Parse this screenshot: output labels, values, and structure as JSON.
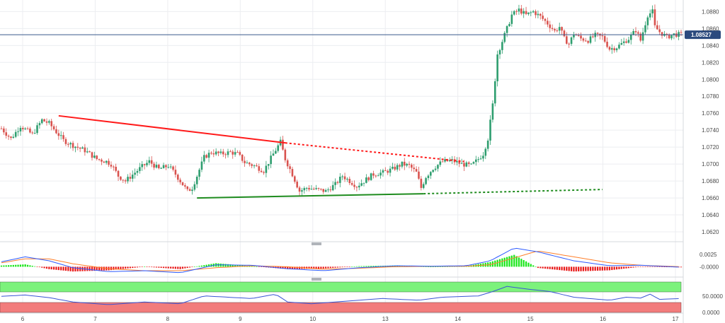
{
  "chart_data": [
    {
      "type": "candlestick",
      "title": "",
      "x_ticks": [
        "6",
        "7",
        "8",
        "9",
        "10",
        "13",
        "14",
        "15",
        "16",
        "17"
      ],
      "y_ticks": [
        "1.0880",
        "1.0860",
        "1.0840",
        "1.0820",
        "1.0800",
        "1.0780",
        "1.0760",
        "1.0740",
        "1.0720",
        "1.0700",
        "1.0680",
        "1.0660",
        "1.0640",
        "1.0620"
      ],
      "ylim": [
        1.061,
        1.0892
      ],
      "last_price": 1.08527,
      "last_price_label": "1.08527",
      "grid": true,
      "colors": {
        "up": "#2e9e6f",
        "down": "#d9534f",
        "resistance": "#ff1a1a",
        "support": "#1f8c1f",
        "last_line": "#3a5a8c"
      },
      "trendlines": [
        {
          "name": "resistance",
          "from": [
            "6 (late)",
            1.0757
          ],
          "to": [
            "9 (late)",
            1.0725
          ],
          "extension_to": [
            "14",
            1.0703
          ],
          "style": "solid-then-dotted"
        },
        {
          "name": "support",
          "from": [
            "8 (late)",
            1.066
          ],
          "to": [
            "13 (late)",
            1.0665
          ],
          "extension_to": [
            "15 (late)",
            1.067
          ],
          "style": "solid-then-dotted"
        }
      ],
      "close_path": [
        [
          0,
          1.0742
        ],
        [
          4,
          1.073
        ],
        [
          8,
          1.0745
        ],
        [
          13,
          1.0735
        ],
        [
          17,
          1.0752
        ],
        [
          20,
          1.0748
        ],
        [
          23,
          1.0738
        ],
        [
          26,
          1.0728
        ],
        [
          30,
          1.0722
        ],
        [
          35,
          1.0716
        ],
        [
          40,
          1.0706
        ],
        [
          44,
          1.0703
        ],
        [
          46,
          1.07
        ],
        [
          49,
          1.0686
        ],
        [
          52,
          1.068
        ],
        [
          56,
          1.069
        ],
        [
          59,
          1.0697
        ],
        [
          62,
          1.0703
        ],
        [
          66,
          1.0694
        ],
        [
          70,
          1.0698
        ],
        [
          73,
          1.0688
        ],
        [
          76,
          1.0676
        ],
        [
          78,
          1.0668
        ],
        [
          80,
          1.0672
        ],
        [
          82,
          1.0686
        ],
        [
          85,
          1.0708
        ],
        [
          88,
          1.0714
        ],
        [
          92,
          1.0712
        ],
        [
          96,
          1.0714
        ],
        [
          99,
          1.0712
        ],
        [
          102,
          1.0702
        ],
        [
          106,
          1.0698
        ],
        [
          110,
          1.0692
        ],
        [
          114,
          1.0712
        ],
        [
          117,
          1.0726
        ],
        [
          119,
          1.0706
        ],
        [
          122,
          1.0688
        ],
        [
          125,
          1.0668
        ],
        [
          128,
          1.0672
        ],
        [
          132,
          1.067
        ],
        [
          136,
          1.0668
        ],
        [
          140,
          1.0676
        ],
        [
          143,
          1.0686
        ],
        [
          146,
          1.068
        ],
        [
          149,
          1.0674
        ],
        [
          152,
          1.068
        ],
        [
          156,
          1.0688
        ],
        [
          160,
          1.069
        ],
        [
          164,
          1.0694
        ],
        [
          168,
          1.07
        ],
        [
          171,
          1.0698
        ],
        [
          174,
          1.069
        ],
        [
          176,
          1.0672
        ],
        [
          178,
          1.0685
        ],
        [
          181,
          1.0695
        ],
        [
          185,
          1.0703
        ],
        [
          189,
          1.0704
        ],
        [
          193,
          1.07
        ],
        [
          197,
          1.0698
        ],
        [
          200,
          1.0706
        ],
        [
          202,
          1.0712
        ],
        [
          204,
          1.073
        ],
        [
          206,
          1.077
        ],
        [
          208,
          1.083
        ],
        [
          210,
          1.0845
        ],
        [
          212,
          1.086
        ],
        [
          214,
          1.0876
        ],
        [
          217,
          1.0882
        ],
        [
          220,
          1.0876
        ],
        [
          223,
          1.088
        ],
        [
          226,
          1.0874
        ],
        [
          229,
          1.0866
        ],
        [
          232,
          1.0857
        ],
        [
          234,
          1.0862
        ],
        [
          236,
          1.0848
        ],
        [
          238,
          1.0842
        ],
        [
          240,
          1.0854
        ],
        [
          243,
          1.0848
        ],
        [
          246,
          1.0846
        ],
        [
          249,
          1.0852
        ],
        [
          252,
          1.085
        ],
        [
          255,
          1.0836
        ],
        [
          258,
          1.0838
        ],
        [
          261,
          1.0844
        ],
        [
          263,
          1.0848
        ],
        [
          266,
          1.0858
        ],
        [
          268,
          1.0846
        ],
        [
          271,
          1.0876
        ],
        [
          273,
          1.088
        ],
        [
          274,
          1.0862
        ],
        [
          276,
          1.0856
        ],
        [
          279,
          1.085
        ],
        [
          282,
          1.0853
        ],
        [
          285,
          1.0853
        ]
      ]
    },
    {
      "type": "macd",
      "title": "",
      "y_ticks": [
        "0.0025",
        "-0.0000"
      ],
      "series": [
        {
          "color": "#2e5bff"
        },
        {
          "color": "#ff7f2a"
        }
      ],
      "histogram_colors": {
        "positive": "#19e619",
        "negative": "#e81919"
      },
      "macd_path": [
        [
          0,
          0.001
        ],
        [
          10,
          0.002
        ],
        [
          20,
          0.0012
        ],
        [
          30,
          -0.0002
        ],
        [
          45,
          -0.001
        ],
        [
          60,
          -0.0008
        ],
        [
          75,
          -0.0012
        ],
        [
          90,
          0.0004
        ],
        [
          105,
          0.0003
        ],
        [
          120,
          -0.0004
        ],
        [
          135,
          -0.0008
        ],
        [
          150,
          -0.0002
        ],
        [
          165,
          0.0002
        ],
        [
          180,
          0.0001
        ],
        [
          195,
          0.0002
        ],
        [
          205,
          0.0012
        ],
        [
          215,
          0.0038
        ],
        [
          225,
          0.003
        ],
        [
          240,
          0.0012
        ],
        [
          255,
          0.0002
        ],
        [
          268,
          0.0003
        ],
        [
          285,
          -0.0001
        ]
      ],
      "signal_path": [
        [
          0,
          0.0008
        ],
        [
          10,
          0.0016
        ],
        [
          20,
          0.0016
        ],
        [
          30,
          0.0006
        ],
        [
          45,
          -0.0004
        ],
        [
          60,
          -0.0008
        ],
        [
          75,
          -0.0008
        ],
        [
          90,
          -0.0002
        ],
        [
          105,
          0.0002
        ],
        [
          120,
          0.0
        ],
        [
          135,
          -0.0005
        ],
        [
          150,
          -0.0003
        ],
        [
          165,
          0.0
        ],
        [
          180,
          0.0001
        ],
        [
          195,
          0.0001
        ],
        [
          205,
          0.0004
        ],
        [
          215,
          0.0018
        ],
        [
          225,
          0.0032
        ],
        [
          240,
          0.002
        ],
        [
          255,
          0.0008
        ],
        [
          268,
          0.0003
        ],
        [
          285,
          0.0
        ]
      ]
    },
    {
      "type": "rsi",
      "title": "",
      "y_ticks": [
        "50.0000",
        "0.0000"
      ],
      "overbought_color": "#7cf27c",
      "oversold_color": "#f27c7c",
      "rsi_path": [
        [
          0,
          57
        ],
        [
          10,
          60
        ],
        [
          20,
          54
        ],
        [
          30,
          44
        ],
        [
          45,
          38
        ],
        [
          60,
          44
        ],
        [
          75,
          40
        ],
        [
          85,
          58
        ],
        [
          95,
          55
        ],
        [
          105,
          52
        ],
        [
          115,
          62
        ],
        [
          120,
          44
        ],
        [
          130,
          40
        ],
        [
          145,
          46
        ],
        [
          160,
          52
        ],
        [
          175,
          48
        ],
        [
          185,
          55
        ],
        [
          200,
          58
        ],
        [
          206,
          68
        ],
        [
          212,
          80
        ],
        [
          220,
          74
        ],
        [
          230,
          68
        ],
        [
          240,
          55
        ],
        [
          255,
          48
        ],
        [
          262,
          55
        ],
        [
          268,
          53
        ],
        [
          272,
          62
        ],
        [
          276,
          50
        ],
        [
          285,
          52
        ]
      ]
    }
  ]
}
